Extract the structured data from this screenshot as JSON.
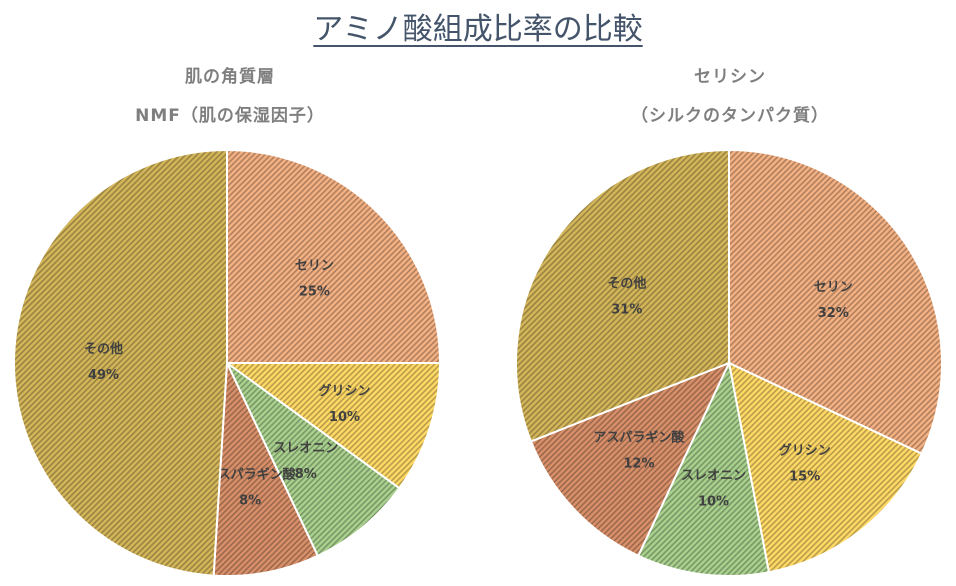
{
  "main_title": "アミノ酸組成比率の比較",
  "chart_data": [
    {
      "type": "pie",
      "title": [
        "肌の角質層",
        "NMF（肌の保湿因子）"
      ],
      "labels": [
        "セリン",
        "グリシン",
        "スレオニン",
        "アスパラギン酸",
        "その他"
      ],
      "values": [
        25,
        10,
        8,
        8,
        49
      ],
      "percent_labels": [
        "25%",
        "10%",
        "8%",
        "8%",
        "49%"
      ],
      "colors": [
        "#F4B183",
        "#FFD966",
        "#A9D18E",
        "#D9906A",
        "#D4B65A"
      ]
    },
    {
      "type": "pie",
      "title": [
        "セリシン",
        "（シルクのタンパク質）"
      ],
      "labels": [
        "セリン",
        "グリシン",
        "スレオニン",
        "アスパラギン酸",
        "その他"
      ],
      "values": [
        32,
        15,
        10,
        12,
        31
      ],
      "percent_labels": [
        "32%",
        "15%",
        "10%",
        "12%",
        "31%"
      ],
      "colors": [
        "#F4B183",
        "#FFD966",
        "#A9D18E",
        "#D9906A",
        "#D4B65A"
      ]
    }
  ]
}
